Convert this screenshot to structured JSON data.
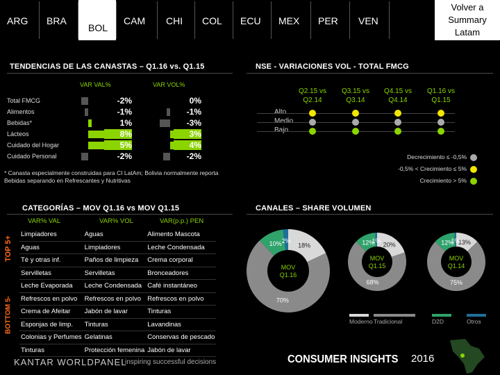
{
  "nav": {
    "tabs": [
      "ARG",
      "BRA",
      "BOL",
      "CAM",
      "CHI",
      "COL",
      "ECU",
      "MEX",
      "PER",
      "VEN"
    ],
    "active": "BOL",
    "summary_label": "Volver a Summary Latam"
  },
  "canastas": {
    "title": "TENDENCIAS DE LAS CANASTAS – Q1.16 vs. Q1.15",
    "col_val": "VAR VAL%",
    "col_vol": "VAR VOL%",
    "rows": [
      {
        "label": "Total FMCG",
        "val": "-2%",
        "vol": "0%",
        "val_num": -2,
        "vol_num": 0
      },
      {
        "label": "Alimentos",
        "val": "-1%",
        "vol": "-1%",
        "val_num": -1,
        "vol_num": -1
      },
      {
        "label": "Bebidas*",
        "val": "1%",
        "vol": "-3%",
        "val_num": 1,
        "vol_num": -3
      },
      {
        "label": "Lácteos",
        "val": "8%",
        "vol": "3%",
        "val_num": 8,
        "vol_num": 3
      },
      {
        "label": "Cuidado del Hogar",
        "val": "5%",
        "vol": "4%",
        "val_num": 5,
        "vol_num": 4
      },
      {
        "label": "Cuidado Personal",
        "val": "-2%",
        "vol": "-2%",
        "val_num": -2,
        "vol_num": -2
      }
    ],
    "footnote": "* Canasta especialmente construidas para CI LatAm; Bolivia normalmente reporta Bebidas separando en Refrescantes y Nutritivas"
  },
  "nse": {
    "title": "NSE - VARIACIONES VOL - TOTAL FMCG",
    "columns": [
      "Q2.15 vs Q2.14",
      "Q3.15 vs Q3.14",
      "Q4.15 vs Q4.14",
      "Q1.16 vs Q1.15"
    ],
    "rows": [
      "Alto",
      "Medio",
      "Bajo"
    ],
    "dots": [
      [
        "yellow",
        "yellow",
        "yellow",
        "yellow"
      ],
      [
        "gray",
        "gray",
        "gray",
        "gray"
      ],
      [
        "green",
        "green",
        "green",
        "green"
      ]
    ],
    "legend": [
      {
        "label": "Decrecimiento ≤ -0,5%",
        "color": "gray"
      },
      {
        "label": "-0,5% < Crecimiento ≤ 5%",
        "color": "yellow"
      },
      {
        "label": "Crecimiento > 5%",
        "color": "green"
      }
    ],
    "colors": {
      "yellow": "#f2e600",
      "gray": "#aaaaaa",
      "green": "#8bd400"
    }
  },
  "categorias": {
    "title": "CATEGORÍAS – MOV Q1.16 vs MOV Q1.15",
    "headers": [
      "VAR% VAL",
      "VAR% VOL",
      "VAR(p.p.) PEN"
    ],
    "top_label": "TOP 5+",
    "bottom_label": "BOTTOM 5-",
    "top_rows": [
      [
        "Limpiadores",
        "Aguas",
        "Alimento Mascota"
      ],
      [
        "Aguas",
        "Limpiadores",
        "Leche Condensada"
      ],
      [
        "Té y otras inf.",
        "Paños de limpieza",
        "Crema corporal"
      ],
      [
        "Servilletas",
        "Servilletas",
        "Bronceadores"
      ],
      [
        "Leche Evaporada",
        "Leche Condensada",
        "Café instantáneo"
      ]
    ],
    "bottom_rows": [
      [
        "Refrescos en polvo",
        "Refrescos en polvo",
        "Refrescos en polvo"
      ],
      [
        "Crema de Afeitar",
        "Jabón de lavar",
        "Tinturas"
      ],
      [
        "Esponjas de limp.",
        "Tinturas",
        "Lavandinas"
      ],
      [
        "Colonias y Perfumes",
        "Gelatinas",
        "Conservas de pescado"
      ],
      [
        "Tinturas",
        "Protección femenina",
        "Jabón de lavar"
      ]
    ]
  },
  "canales": {
    "title": "CANALES – SHARE VOLUMEN",
    "legend": [
      "Moderno",
      "Tradicional",
      "D2D",
      "Otros"
    ],
    "colors": {
      "Moderno": "#d9d9d9",
      "Tradicional": "#8a8a8a",
      "D2D": "#2fa36b",
      "Otros": "#1f6f9a"
    }
  },
  "chart_data": [
    {
      "type": "pie",
      "title": "MOV Q1.16",
      "categories": [
        "Moderno",
        "Tradicional",
        "D2D",
        "Otros"
      ],
      "values": [
        18,
        70,
        10,
        2
      ],
      "labels": [
        "18%",
        "70%",
        "10%",
        "2%"
      ]
    },
    {
      "type": "pie",
      "title": "MOV Q1.15",
      "categories": [
        "Moderno",
        "Tradicional",
        "D2D",
        "Otros"
      ],
      "values": [
        20,
        68,
        12,
        1
      ],
      "labels": [
        "20%",
        "68%",
        "12%",
        "1%"
      ]
    },
    {
      "type": "pie",
      "title": "MOV Q1.14",
      "categories": [
        "Moderno",
        "Tradicional",
        "D2D",
        "Otros"
      ],
      "values": [
        13,
        75,
        12,
        1
      ],
      "labels": [
        "13%",
        "75%",
        "12%",
        "1%"
      ]
    }
  ],
  "footer": {
    "brand": "KANTAR WORLDPANEL",
    "tagline": "inspiring successful decisions",
    "ci": "CONSUMER INSIGHTS",
    "year": "2016"
  }
}
